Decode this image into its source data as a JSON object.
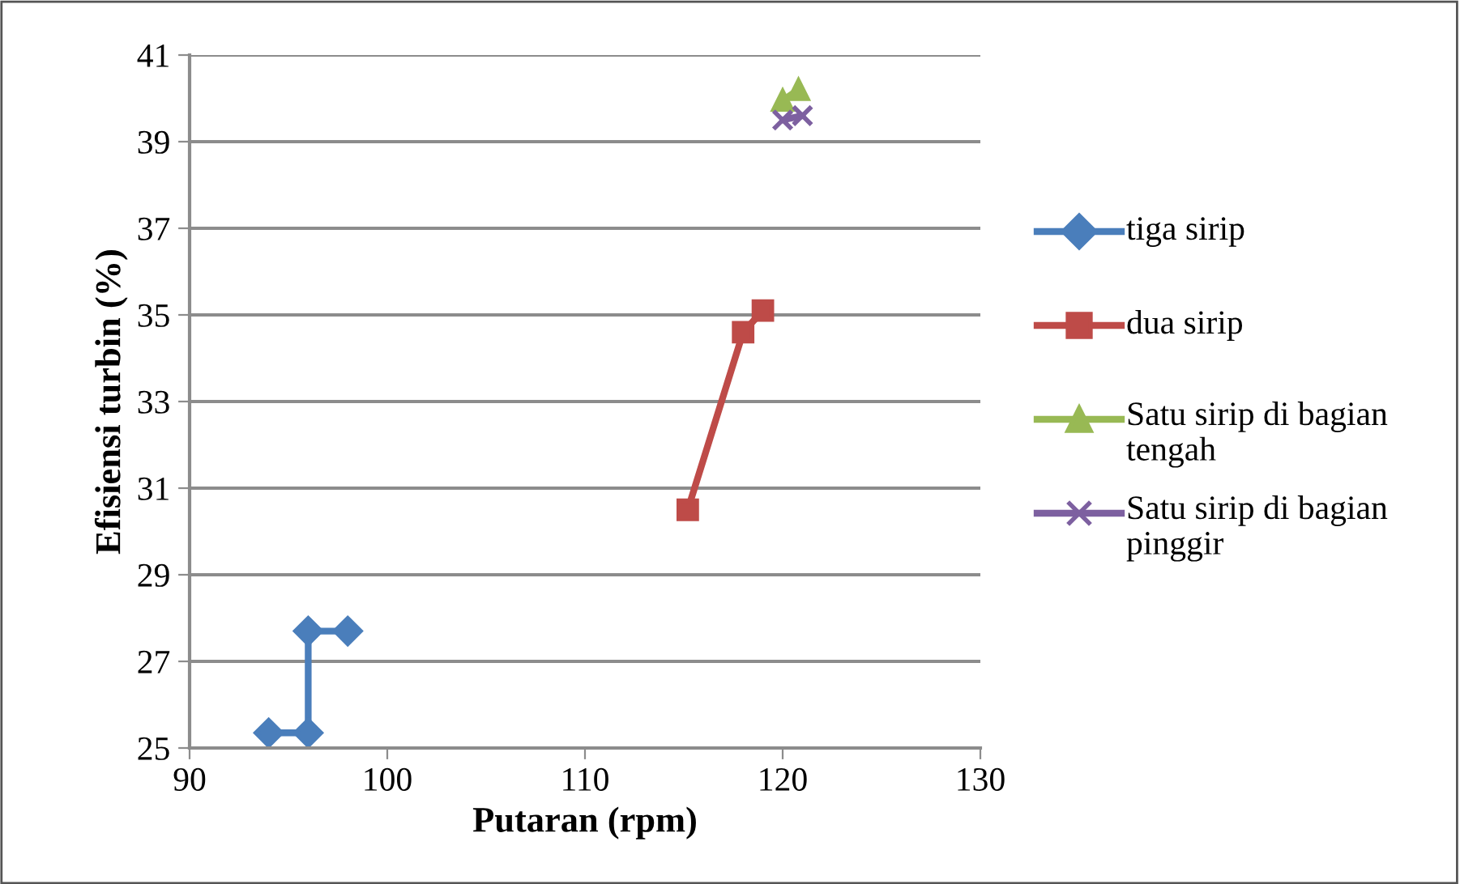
{
  "chart_data": {
    "type": "line",
    "xlabel": "Putaran (rpm)",
    "ylabel": "Efisiensi turbin (%)",
    "xlim": [
      90,
      130
    ],
    "xticks": [
      90,
      100,
      110,
      120,
      130
    ],
    "ylim": [
      25,
      41
    ],
    "yticks": [
      25,
      27,
      29,
      31,
      33,
      35,
      37,
      39,
      41
    ],
    "grid": "y",
    "legend": "right",
    "line_style": "solid",
    "series": [
      {
        "name": "tiga sirip",
        "color": "#4a7ebb",
        "marker": "diamond",
        "x": [
          94,
          96,
          96,
          98
        ],
        "values": [
          25.35,
          25.35,
          27.7,
          27.7
        ]
      },
      {
        "name": "dua sirip",
        "color": "#be4b48",
        "marker": "square",
        "x": [
          115.2,
          118,
          119
        ],
        "values": [
          30.5,
          34.6,
          35.1
        ]
      },
      {
        "name": "Satu sirip di bagian tengah",
        "color": "#98b954",
        "marker": "triangle",
        "x": [
          120,
          120.8
        ],
        "values": [
          39.95,
          40.2
        ]
      },
      {
        "name": "Satu sirip di bagian pinggir",
        "color": "#7d60a0",
        "marker": "cross",
        "x": [
          120,
          121
        ],
        "values": [
          39.5,
          39.6
        ]
      }
    ]
  }
}
